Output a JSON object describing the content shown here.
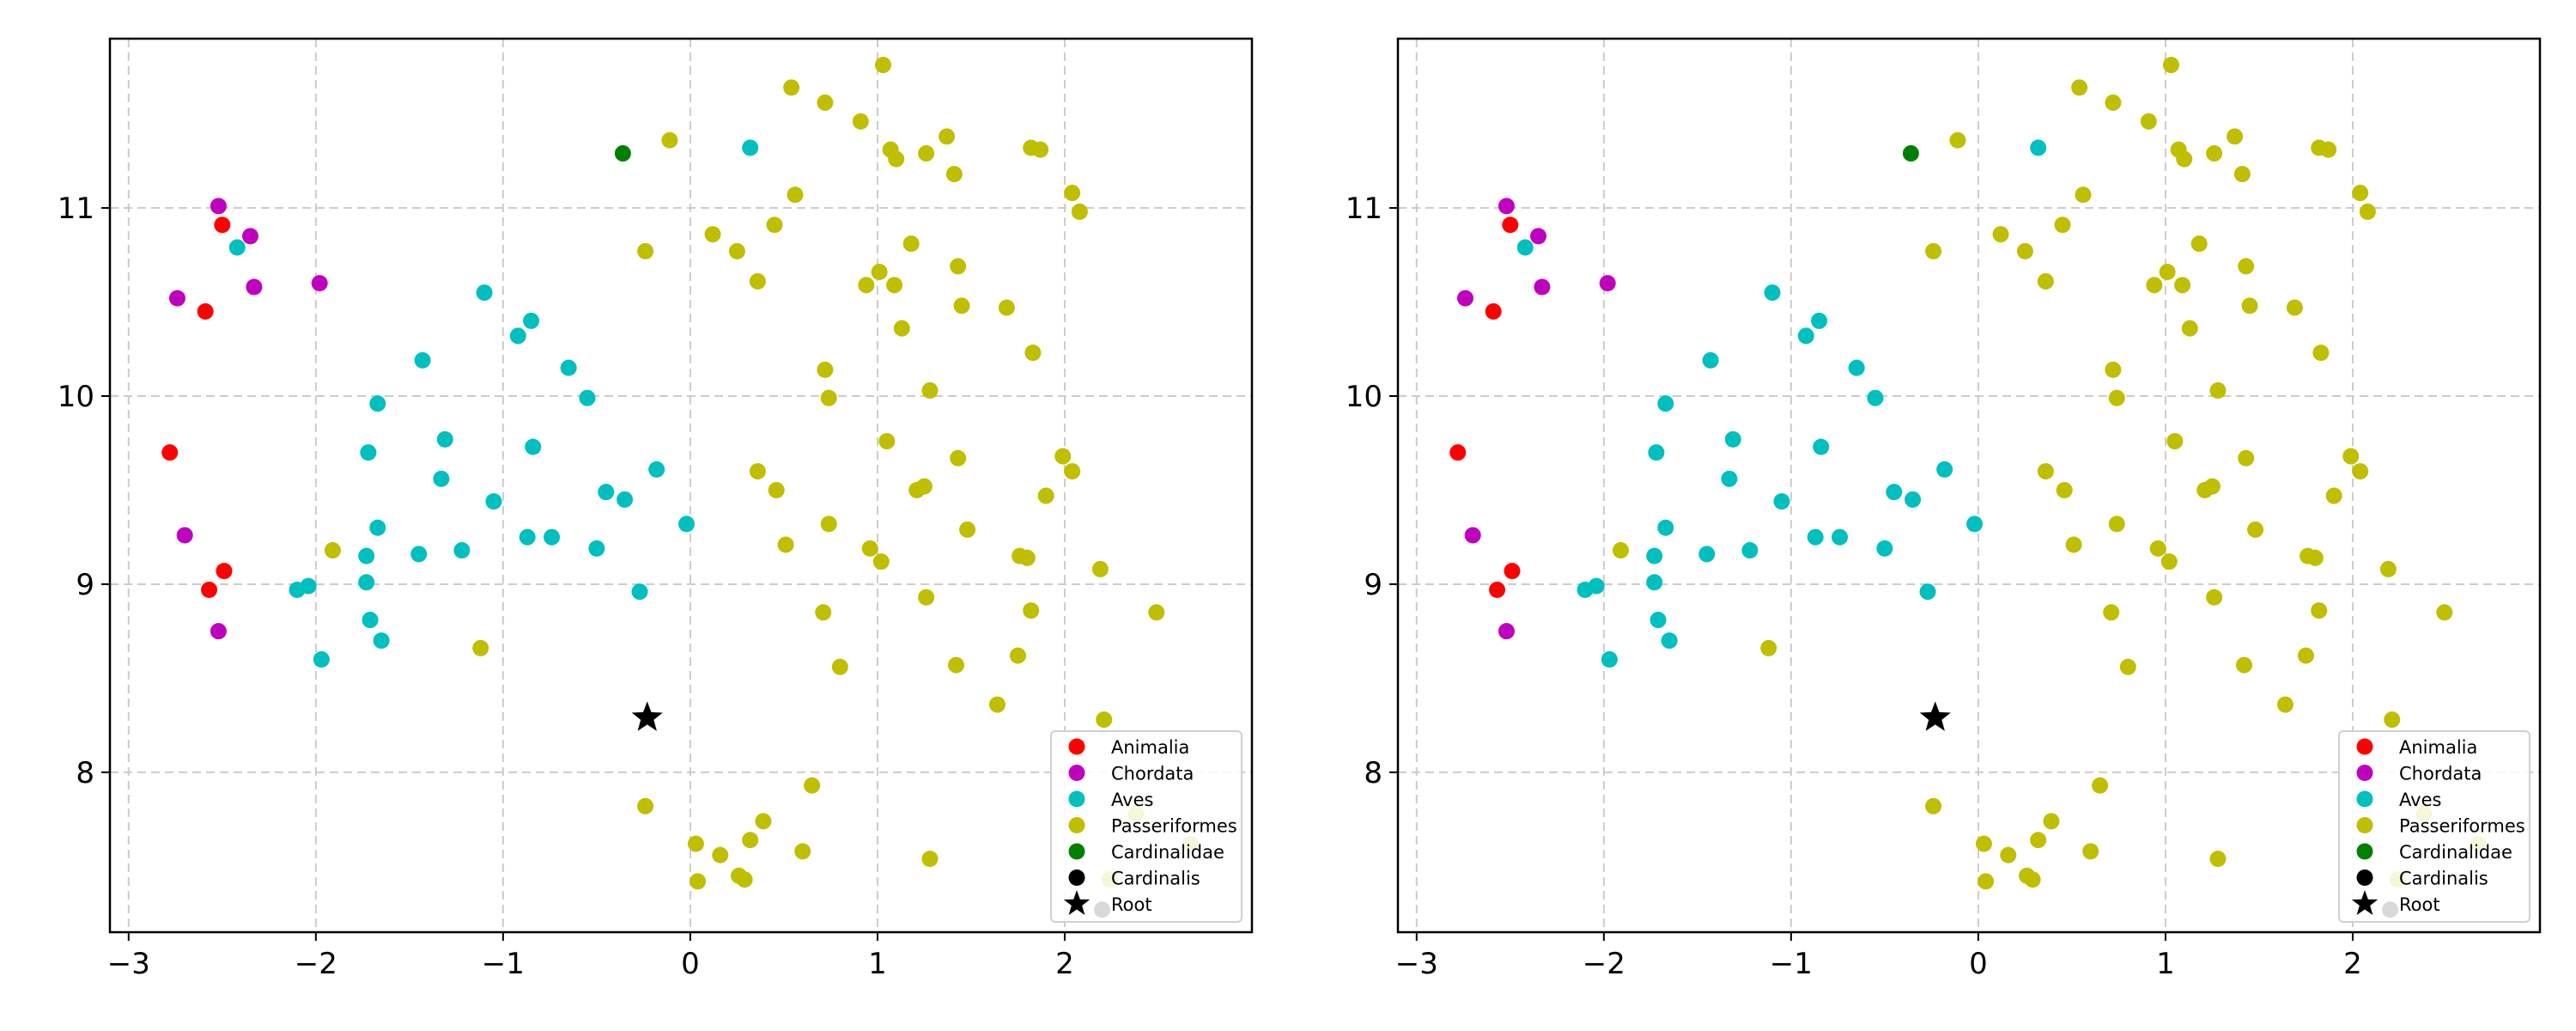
{
  "chart_data": [
    {
      "type": "scatter",
      "title": "",
      "xlabel": "",
      "ylabel": "",
      "xlim": [
        -3.1,
        3.0
      ],
      "ylim": [
        7.15,
        11.9
      ],
      "xticks": [
        -3,
        -2,
        -1,
        0,
        1,
        2
      ],
      "xtick_labels": [
        "−3",
        "−2",
        "−1",
        "0",
        "1",
        "2"
      ],
      "yticks": [
        8,
        9,
        10,
        11
      ],
      "ytick_labels": [
        "8",
        "9",
        "10",
        "11"
      ],
      "grid": true,
      "legend": "lower-right",
      "series": [
        {
          "name": "Animalia",
          "color": "#ff0000",
          "marker": "circle",
          "points": [
            [
              -2.5,
              10.91
            ],
            [
              -2.59,
              10.45
            ],
            [
              -2.78,
              9.7
            ],
            [
              -2.49,
              9.07
            ],
            [
              -2.57,
              8.97
            ]
          ]
        },
        {
          "name": "Chordata",
          "color": "#bf00bf",
          "marker": "circle",
          "points": [
            [
              -2.52,
              11.01
            ],
            [
              -2.35,
              10.85
            ],
            [
              -2.33,
              10.58
            ],
            [
              -2.74,
              10.52
            ],
            [
              -1.98,
              10.6
            ],
            [
              -2.7,
              9.26
            ],
            [
              -2.52,
              8.75
            ]
          ]
        },
        {
          "name": "Aves",
          "color": "#00bfbf",
          "marker": "circle",
          "points": [
            [
              -2.42,
              10.79
            ],
            [
              -1.1,
              10.55
            ],
            [
              -0.92,
              10.32
            ],
            [
              -0.85,
              10.4
            ],
            [
              -1.43,
              10.19
            ],
            [
              -0.65,
              10.15
            ],
            [
              -1.67,
              9.96
            ],
            [
              -0.55,
              9.99
            ],
            [
              -1.72,
              9.7
            ],
            [
              -1.31,
              9.77
            ],
            [
              -0.84,
              9.73
            ],
            [
              -1.33,
              9.56
            ],
            [
              -0.18,
              9.61
            ],
            [
              -1.05,
              9.44
            ],
            [
              -0.45,
              9.49
            ],
            [
              -0.35,
              9.45
            ],
            [
              -1.67,
              9.3
            ],
            [
              -0.02,
              9.32
            ],
            [
              -1.73,
              9.15
            ],
            [
              -1.45,
              9.16
            ],
            [
              -1.22,
              9.18
            ],
            [
              -0.87,
              9.25
            ],
            [
              -0.74,
              9.25
            ],
            [
              -0.5,
              9.19
            ],
            [
              -1.73,
              9.01
            ],
            [
              -2.04,
              8.99
            ],
            [
              -2.1,
              8.97
            ],
            [
              -0.27,
              8.96
            ],
            [
              -1.71,
              8.81
            ],
            [
              -1.65,
              8.7
            ],
            [
              -1.97,
              8.6
            ],
            [
              0.32,
              11.32
            ]
          ]
        },
        {
          "name": "Passeriformes",
          "color": "#bfbf00",
          "marker": "circle",
          "points": [
            [
              0.54,
              11.64
            ],
            [
              0.72,
              11.56
            ],
            [
              1.03,
              11.76
            ],
            [
              0.91,
              11.46
            ],
            [
              1.37,
              11.38
            ],
            [
              -0.11,
              11.36
            ],
            [
              1.07,
              11.31
            ],
            [
              1.1,
              11.26
            ],
            [
              1.26,
              11.29
            ],
            [
              1.82,
              11.32
            ],
            [
              1.87,
              11.31
            ],
            [
              1.41,
              11.18
            ],
            [
              0.56,
              11.07
            ],
            [
              2.04,
              11.08
            ],
            [
              2.08,
              10.98
            ],
            [
              0.45,
              10.91
            ],
            [
              0.12,
              10.86
            ],
            [
              -0.24,
              10.77
            ],
            [
              0.25,
              10.77
            ],
            [
              1.18,
              10.81
            ],
            [
              1.43,
              10.69
            ],
            [
              1.01,
              10.66
            ],
            [
              0.36,
              10.61
            ],
            [
              0.94,
              10.59
            ],
            [
              1.09,
              10.59
            ],
            [
              1.45,
              10.48
            ],
            [
              1.69,
              10.47
            ],
            [
              1.13,
              10.36
            ],
            [
              1.83,
              10.23
            ],
            [
              0.72,
              10.14
            ],
            [
              1.28,
              10.03
            ],
            [
              0.74,
              9.99
            ],
            [
              1.05,
              9.76
            ],
            [
              1.99,
              9.68
            ],
            [
              1.43,
              9.67
            ],
            [
              2.04,
              9.6
            ],
            [
              0.36,
              9.6
            ],
            [
              0.46,
              9.5
            ],
            [
              1.21,
              9.5
            ],
            [
              1.25,
              9.52
            ],
            [
              1.9,
              9.47
            ],
            [
              0.74,
              9.32
            ],
            [
              1.48,
              9.29
            ],
            [
              0.51,
              9.21
            ],
            [
              0.96,
              9.19
            ],
            [
              1.02,
              9.12
            ],
            [
              1.76,
              9.15
            ],
            [
              1.8,
              9.14
            ],
            [
              -1.91,
              9.18
            ],
            [
              2.19,
              9.08
            ],
            [
              1.26,
              8.93
            ],
            [
              0.71,
              8.85
            ],
            [
              1.82,
              8.86
            ],
            [
              2.49,
              8.85
            ],
            [
              -1.12,
              8.66
            ],
            [
              1.75,
              8.62
            ],
            [
              1.42,
              8.57
            ],
            [
              0.8,
              8.56
            ],
            [
              1.64,
              8.36
            ],
            [
              2.21,
              8.28
            ],
            [
              0.65,
              7.93
            ],
            [
              -0.24,
              7.82
            ],
            [
              0.39,
              7.74
            ],
            [
              0.03,
              7.62
            ],
            [
              0.32,
              7.64
            ],
            [
              0.16,
              7.56
            ],
            [
              0.6,
              7.58
            ],
            [
              1.28,
              7.54
            ],
            [
              0.26,
              7.45
            ],
            [
              0.29,
              7.43
            ],
            [
              0.04,
              7.42
            ],
            [
              2.38,
              7.78
            ],
            [
              2.67,
              7.62
            ],
            [
              2.24,
              7.43
            ]
          ]
        },
        {
          "name": "Cardinalidae",
          "color": "#008000",
          "marker": "circle",
          "points": [
            [
              -0.36,
              11.29
            ]
          ]
        },
        {
          "name": "Cardinalis",
          "color": "#000000",
          "marker": "circle",
          "points": [
            [
              2.2,
              7.27
            ]
          ]
        },
        {
          "name": "Root",
          "color": "#000000",
          "marker": "star",
          "points": [
            [
              -0.23,
              8.29
            ]
          ]
        }
      ]
    },
    {
      "type": "scatter",
      "title": "",
      "xlabel": "",
      "ylabel": "",
      "xlim": [
        -3.1,
        3.0
      ],
      "ylim": [
        7.15,
        11.9
      ],
      "xticks": [
        -3,
        -2,
        -1,
        0,
        1,
        2
      ],
      "xtick_labels": [
        "−3",
        "−2",
        "−1",
        "0",
        "1",
        "2"
      ],
      "yticks": [
        8,
        9,
        10,
        11
      ],
      "ytick_labels": [
        "8",
        "9",
        "10",
        "11"
      ],
      "grid": true,
      "legend": "lower-right",
      "series": [
        {
          "name": "Animalia",
          "color": "#ff0000",
          "marker": "circle",
          "points": [
            [
              -2.5,
              10.91
            ],
            [
              -2.59,
              10.45
            ],
            [
              -2.78,
              9.7
            ],
            [
              -2.49,
              9.07
            ],
            [
              -2.57,
              8.97
            ]
          ]
        },
        {
          "name": "Chordata",
          "color": "#bf00bf",
          "marker": "circle",
          "points": [
            [
              -2.52,
              11.01
            ],
            [
              -2.35,
              10.85
            ],
            [
              -2.33,
              10.58
            ],
            [
              -2.74,
              10.52
            ],
            [
              -1.98,
              10.6
            ],
            [
              -2.7,
              9.26
            ],
            [
              -2.52,
              8.75
            ]
          ]
        },
        {
          "name": "Aves",
          "color": "#00bfbf",
          "marker": "circle",
          "points": [
            [
              -2.42,
              10.79
            ],
            [
              -1.1,
              10.55
            ],
            [
              -0.92,
              10.32
            ],
            [
              -0.85,
              10.4
            ],
            [
              -1.43,
              10.19
            ],
            [
              -0.65,
              10.15
            ],
            [
              -1.67,
              9.96
            ],
            [
              -0.55,
              9.99
            ],
            [
              -1.72,
              9.7
            ],
            [
              -1.31,
              9.77
            ],
            [
              -0.84,
              9.73
            ],
            [
              -1.33,
              9.56
            ],
            [
              -0.18,
              9.61
            ],
            [
              -1.05,
              9.44
            ],
            [
              -0.45,
              9.49
            ],
            [
              -0.35,
              9.45
            ],
            [
              -1.67,
              9.3
            ],
            [
              -0.02,
              9.32
            ],
            [
              -1.73,
              9.15
            ],
            [
              -1.45,
              9.16
            ],
            [
              -1.22,
              9.18
            ],
            [
              -0.87,
              9.25
            ],
            [
              -0.74,
              9.25
            ],
            [
              -0.5,
              9.19
            ],
            [
              -1.73,
              9.01
            ],
            [
              -2.04,
              8.99
            ],
            [
              -2.1,
              8.97
            ],
            [
              -0.27,
              8.96
            ],
            [
              -1.71,
              8.81
            ],
            [
              -1.65,
              8.7
            ],
            [
              -1.97,
              8.6
            ],
            [
              0.32,
              11.32
            ]
          ]
        },
        {
          "name": "Passeriformes",
          "color": "#bfbf00",
          "marker": "circle",
          "points": [
            [
              0.54,
              11.64
            ],
            [
              0.72,
              11.56
            ],
            [
              1.03,
              11.76
            ],
            [
              0.91,
              11.46
            ],
            [
              1.37,
              11.38
            ],
            [
              -0.11,
              11.36
            ],
            [
              1.07,
              11.31
            ],
            [
              1.1,
              11.26
            ],
            [
              1.26,
              11.29
            ],
            [
              1.82,
              11.32
            ],
            [
              1.87,
              11.31
            ],
            [
              1.41,
              11.18
            ],
            [
              0.56,
              11.07
            ],
            [
              2.04,
              11.08
            ],
            [
              2.08,
              10.98
            ],
            [
              0.45,
              10.91
            ],
            [
              0.12,
              10.86
            ],
            [
              -0.24,
              10.77
            ],
            [
              0.25,
              10.77
            ],
            [
              1.18,
              10.81
            ],
            [
              1.43,
              10.69
            ],
            [
              1.01,
              10.66
            ],
            [
              0.36,
              10.61
            ],
            [
              0.94,
              10.59
            ],
            [
              1.09,
              10.59
            ],
            [
              1.45,
              10.48
            ],
            [
              1.69,
              10.47
            ],
            [
              1.13,
              10.36
            ],
            [
              1.83,
              10.23
            ],
            [
              0.72,
              10.14
            ],
            [
              1.28,
              10.03
            ],
            [
              0.74,
              9.99
            ],
            [
              1.05,
              9.76
            ],
            [
              1.99,
              9.68
            ],
            [
              1.43,
              9.67
            ],
            [
              2.04,
              9.6
            ],
            [
              0.36,
              9.6
            ],
            [
              0.46,
              9.5
            ],
            [
              1.21,
              9.5
            ],
            [
              1.25,
              9.52
            ],
            [
              1.9,
              9.47
            ],
            [
              0.74,
              9.32
            ],
            [
              1.48,
              9.29
            ],
            [
              0.51,
              9.21
            ],
            [
              0.96,
              9.19
            ],
            [
              1.02,
              9.12
            ],
            [
              1.76,
              9.15
            ],
            [
              1.8,
              9.14
            ],
            [
              -1.91,
              9.18
            ],
            [
              2.19,
              9.08
            ],
            [
              1.26,
              8.93
            ],
            [
              0.71,
              8.85
            ],
            [
              1.82,
              8.86
            ],
            [
              2.49,
              8.85
            ],
            [
              -1.12,
              8.66
            ],
            [
              1.75,
              8.62
            ],
            [
              1.42,
              8.57
            ],
            [
              0.8,
              8.56
            ],
            [
              1.64,
              8.36
            ],
            [
              2.21,
              8.28
            ],
            [
              0.65,
              7.93
            ],
            [
              -0.24,
              7.82
            ],
            [
              0.39,
              7.74
            ],
            [
              0.03,
              7.62
            ],
            [
              0.32,
              7.64
            ],
            [
              0.16,
              7.56
            ],
            [
              0.6,
              7.58
            ],
            [
              1.28,
              7.54
            ],
            [
              0.26,
              7.45
            ],
            [
              0.29,
              7.43
            ],
            [
              0.04,
              7.42
            ],
            [
              2.38,
              7.78
            ],
            [
              2.67,
              7.62
            ],
            [
              2.24,
              7.43
            ]
          ]
        },
        {
          "name": "Cardinalidae",
          "color": "#008000",
          "marker": "circle",
          "points": [
            [
              -0.36,
              11.29
            ]
          ]
        },
        {
          "name": "Cardinalis",
          "color": "#000000",
          "marker": "circle",
          "points": [
            [
              2.2,
              7.27
            ]
          ]
        },
        {
          "name": "Root",
          "color": "#000000",
          "marker": "star",
          "points": [
            [
              -0.23,
              8.29
            ]
          ]
        }
      ]
    }
  ]
}
